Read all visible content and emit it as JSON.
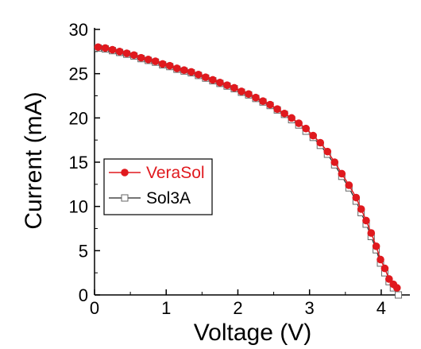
{
  "chart_data": {
    "type": "line",
    "xlabel": "Voltage (V)",
    "ylabel": "Current (mA)",
    "xlim": [
      0,
      4.4
    ],
    "ylim": [
      0,
      30
    ],
    "x_ticks": [
      "0",
      "1",
      "2",
      "3",
      "4"
    ],
    "x_tick_values": [
      0,
      1,
      2,
      3,
      4
    ],
    "y_ticks": [
      "0",
      "5",
      "10",
      "15",
      "20",
      "25",
      "30"
    ],
    "y_tick_values": [
      0,
      5,
      10,
      15,
      20,
      25,
      30
    ],
    "grid": false,
    "legend": "center-left",
    "series": [
      {
        "name": "VeraSol",
        "color": "#e0191e",
        "marker": "filled-circle",
        "x": [
          0.05,
          0.15,
          0.25,
          0.35,
          0.45,
          0.55,
          0.65,
          0.75,
          0.85,
          0.95,
          1.05,
          1.15,
          1.25,
          1.35,
          1.45,
          1.55,
          1.65,
          1.75,
          1.85,
          1.95,
          2.05,
          2.15,
          2.25,
          2.35,
          2.45,
          2.55,
          2.65,
          2.75,
          2.85,
          2.95,
          3.05,
          3.15,
          3.25,
          3.35,
          3.45,
          3.55,
          3.65,
          3.72,
          3.79,
          3.86,
          3.93,
          3.99,
          4.05,
          4.11,
          4.17,
          4.22
        ],
        "y": [
          28.0,
          27.9,
          27.7,
          27.5,
          27.3,
          27.1,
          26.8,
          26.6,
          26.4,
          26.1,
          25.9,
          25.6,
          25.4,
          25.2,
          24.9,
          24.6,
          24.3,
          24.0,
          23.7,
          23.4,
          23.0,
          22.7,
          22.3,
          21.9,
          21.5,
          21.0,
          20.5,
          20.0,
          19.4,
          18.8,
          18.0,
          17.2,
          16.2,
          15.0,
          13.7,
          12.4,
          11.0,
          9.7,
          8.4,
          7.0,
          5.5,
          4.0,
          3.0,
          1.8,
          1.2,
          0.8
        ]
      },
      {
        "name": "Sol3A",
        "color": "#222222",
        "marker": "open-square",
        "x": [
          0.05,
          0.15,
          0.25,
          0.35,
          0.45,
          0.55,
          0.65,
          0.75,
          0.85,
          0.95,
          1.05,
          1.15,
          1.25,
          1.35,
          1.45,
          1.55,
          1.65,
          1.75,
          1.85,
          1.95,
          2.05,
          2.15,
          2.25,
          2.35,
          2.45,
          2.55,
          2.65,
          2.75,
          2.85,
          2.95,
          3.05,
          3.15,
          3.25,
          3.35,
          3.45,
          3.55,
          3.65,
          3.72,
          3.79,
          3.86,
          3.93,
          3.99,
          4.05,
          4.11,
          4.17,
          4.24
        ],
        "y": [
          27.9,
          27.8,
          27.6,
          27.4,
          27.2,
          27.0,
          26.7,
          26.5,
          26.3,
          26.0,
          25.8,
          25.5,
          25.3,
          25.1,
          24.8,
          24.5,
          24.2,
          23.9,
          23.6,
          23.3,
          22.9,
          22.6,
          22.2,
          21.8,
          21.4,
          20.9,
          20.4,
          19.8,
          19.2,
          18.5,
          17.8,
          16.9,
          15.9,
          14.7,
          13.4,
          12.1,
          10.6,
          9.3,
          8.0,
          6.6,
          5.1,
          3.6,
          2.5,
          1.5,
          0.8,
          0.0
        ]
      }
    ]
  }
}
